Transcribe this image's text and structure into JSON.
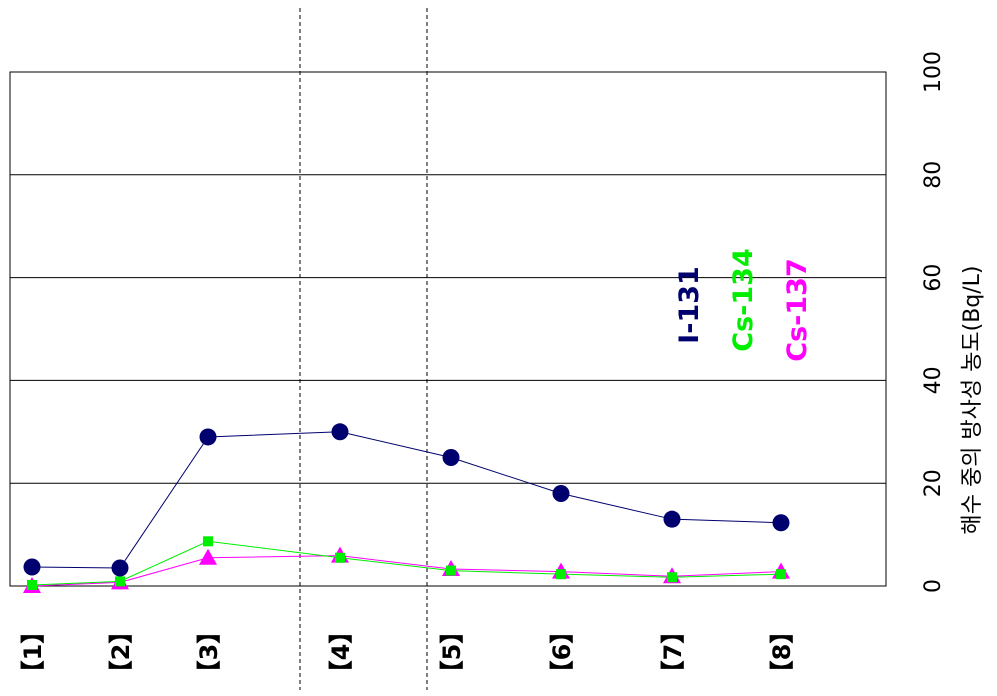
{
  "chart_data": {
    "type": "line",
    "orientation": "rotated-90-clockwise",
    "categories": [
      "【1】",
      "【2】",
      "【3】",
      "【4】",
      "【5】",
      "【6】",
      "【7】",
      "【8】"
    ],
    "ylabel": "해수 중의 방사성 농도(Bq/L)",
    "ylim": [
      0,
      100
    ],
    "yticks": [
      "0",
      "20",
      "40",
      "60",
      "80",
      "100"
    ],
    "grid": true,
    "series": [
      {
        "name": "I-131",
        "color": "#00006e",
        "marker": "circle",
        "values": [
          3.7,
          3.5,
          29.0,
          30.0,
          25.0,
          18.0,
          13.0,
          12.3
        ]
      },
      {
        "name": "Cs-134",
        "color": "#00ee00",
        "marker": "square",
        "values": [
          0.2,
          0.9,
          8.7,
          5.5,
          3.0,
          2.3,
          1.7,
          2.3
        ]
      },
      {
        "name": "Cs-137",
        "color": "#ff00ff",
        "marker": "triangle",
        "values": [
          0.0,
          0.7,
          5.5,
          5.9,
          3.3,
          2.8,
          1.9,
          2.8
        ]
      }
    ]
  }
}
